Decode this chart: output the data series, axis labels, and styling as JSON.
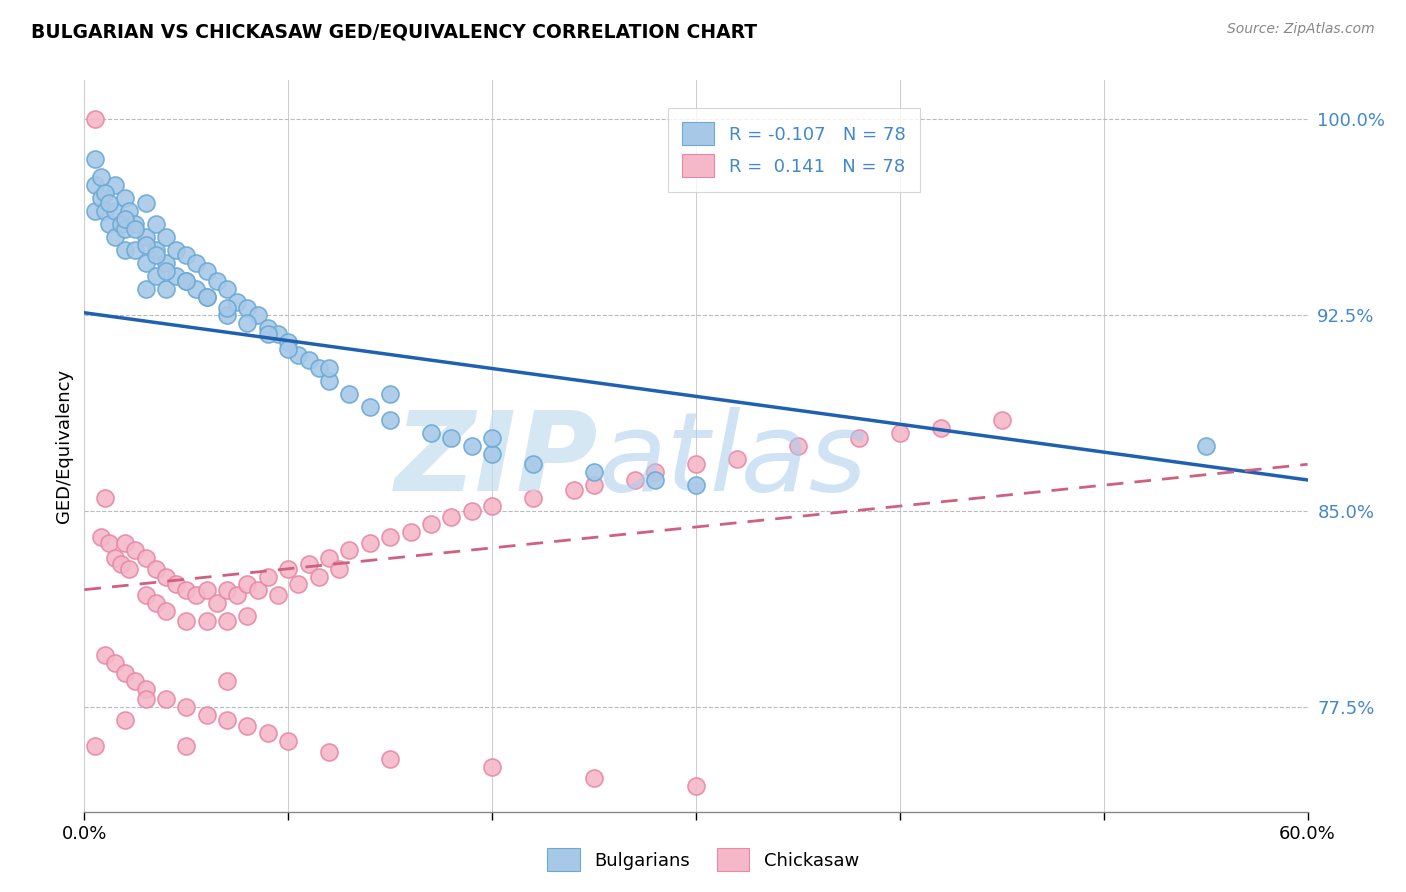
{
  "title": "BULGARIAN VS CHICKASAW GED/EQUIVALENCY CORRELATION CHART",
  "source": "Source: ZipAtlas.com",
  "ylabel": "GED/Equivalency",
  "xmin": 0.0,
  "xmax": 0.6,
  "ymin": 0.735,
  "ymax": 1.015,
  "yticks": [
    0.775,
    0.85,
    0.925,
    1.0
  ],
  "ytick_labels": [
    "77.5%",
    "85.0%",
    "92.5%",
    "100.0%"
  ],
  "blue_color": "#a8c8e8",
  "blue_edge_color": "#6aaad4",
  "pink_color": "#f4b8c8",
  "pink_edge_color": "#e888a8",
  "blue_line_color": "#2060b0",
  "pink_line_color": "#d06080",
  "tick_label_color": "#4488cc",
  "R_blue": -0.107,
  "R_pink": 0.141,
  "N": 78,
  "blue_line_x0": 0.0,
  "blue_line_x1": 0.6,
  "blue_line_y0": 0.926,
  "blue_line_y1": 0.862,
  "pink_line_x0": 0.0,
  "pink_line_x1": 0.6,
  "pink_line_y0": 0.82,
  "pink_line_y1": 0.868,
  "blue_scatter_x": [
    0.5,
    0.5,
    0.8,
    1.0,
    1.2,
    1.5,
    1.5,
    1.5,
    1.8,
    2.0,
    2.0,
    2.0,
    2.2,
    2.5,
    2.5,
    3.0,
    3.0,
    3.0,
    3.0,
    3.5,
    3.5,
    3.5,
    4.0,
    4.0,
    4.0,
    4.5,
    4.5,
    5.0,
    5.0,
    5.5,
    5.5,
    6.0,
    6.0,
    6.5,
    7.0,
    7.0,
    7.5,
    8.0,
    8.5,
    9.0,
    9.5,
    10.0,
    10.5,
    11.0,
    11.5,
    12.0,
    13.0,
    14.0,
    15.0,
    17.0,
    18.0,
    19.0,
    20.0,
    22.0,
    25.0,
    28.0,
    30.0,
    55.0,
    0.5,
    0.8,
    1.0,
    1.2,
    2.0,
    2.5,
    3.0,
    3.5,
    4.0,
    5.0,
    6.0,
    7.0,
    8.0,
    9.0,
    10.0,
    12.0,
    15.0,
    20.0
  ],
  "blue_scatter_y": [
    0.975,
    0.965,
    0.97,
    0.965,
    0.96,
    0.975,
    0.965,
    0.955,
    0.96,
    0.97,
    0.958,
    0.95,
    0.965,
    0.96,
    0.95,
    0.968,
    0.955,
    0.945,
    0.935,
    0.96,
    0.95,
    0.94,
    0.955,
    0.945,
    0.935,
    0.95,
    0.94,
    0.948,
    0.938,
    0.945,
    0.935,
    0.942,
    0.932,
    0.938,
    0.935,
    0.925,
    0.93,
    0.928,
    0.925,
    0.92,
    0.918,
    0.915,
    0.91,
    0.908,
    0.905,
    0.9,
    0.895,
    0.89,
    0.885,
    0.88,
    0.878,
    0.875,
    0.872,
    0.868,
    0.865,
    0.862,
    0.86,
    0.875,
    0.985,
    0.978,
    0.972,
    0.968,
    0.962,
    0.958,
    0.952,
    0.948,
    0.942,
    0.938,
    0.932,
    0.928,
    0.922,
    0.918,
    0.912,
    0.905,
    0.895,
    0.878
  ],
  "pink_scatter_x": [
    0.5,
    0.8,
    1.0,
    1.2,
    1.5,
    1.8,
    2.0,
    2.2,
    2.5,
    3.0,
    3.0,
    3.5,
    3.5,
    4.0,
    4.0,
    4.5,
    5.0,
    5.0,
    5.5,
    6.0,
    6.0,
    6.5,
    7.0,
    7.0,
    7.5,
    8.0,
    8.0,
    8.5,
    9.0,
    9.5,
    10.0,
    10.5,
    11.0,
    11.5,
    12.0,
    12.5,
    13.0,
    14.0,
    15.0,
    16.0,
    17.0,
    18.0,
    19.0,
    20.0,
    22.0,
    24.0,
    25.0,
    27.0,
    28.0,
    30.0,
    32.0,
    35.0,
    38.0,
    40.0,
    42.0,
    45.0,
    1.0,
    1.5,
    2.0,
    2.5,
    3.0,
    4.0,
    5.0,
    6.0,
    7.0,
    8.0,
    9.0,
    10.0,
    12.0,
    15.0,
    20.0,
    25.0,
    30.0,
    5.0,
    0.5,
    2.0,
    3.0,
    7.0
  ],
  "pink_scatter_y": [
    1.0,
    0.84,
    0.855,
    0.838,
    0.832,
    0.83,
    0.838,
    0.828,
    0.835,
    0.832,
    0.818,
    0.828,
    0.815,
    0.825,
    0.812,
    0.822,
    0.82,
    0.808,
    0.818,
    0.82,
    0.808,
    0.815,
    0.82,
    0.808,
    0.818,
    0.822,
    0.81,
    0.82,
    0.825,
    0.818,
    0.828,
    0.822,
    0.83,
    0.825,
    0.832,
    0.828,
    0.835,
    0.838,
    0.84,
    0.842,
    0.845,
    0.848,
    0.85,
    0.852,
    0.855,
    0.858,
    0.86,
    0.862,
    0.865,
    0.868,
    0.87,
    0.875,
    0.878,
    0.88,
    0.882,
    0.885,
    0.795,
    0.792,
    0.788,
    0.785,
    0.782,
    0.778,
    0.775,
    0.772,
    0.77,
    0.768,
    0.765,
    0.762,
    0.758,
    0.755,
    0.752,
    0.748,
    0.745,
    0.76,
    0.76,
    0.77,
    0.778,
    0.785
  ]
}
